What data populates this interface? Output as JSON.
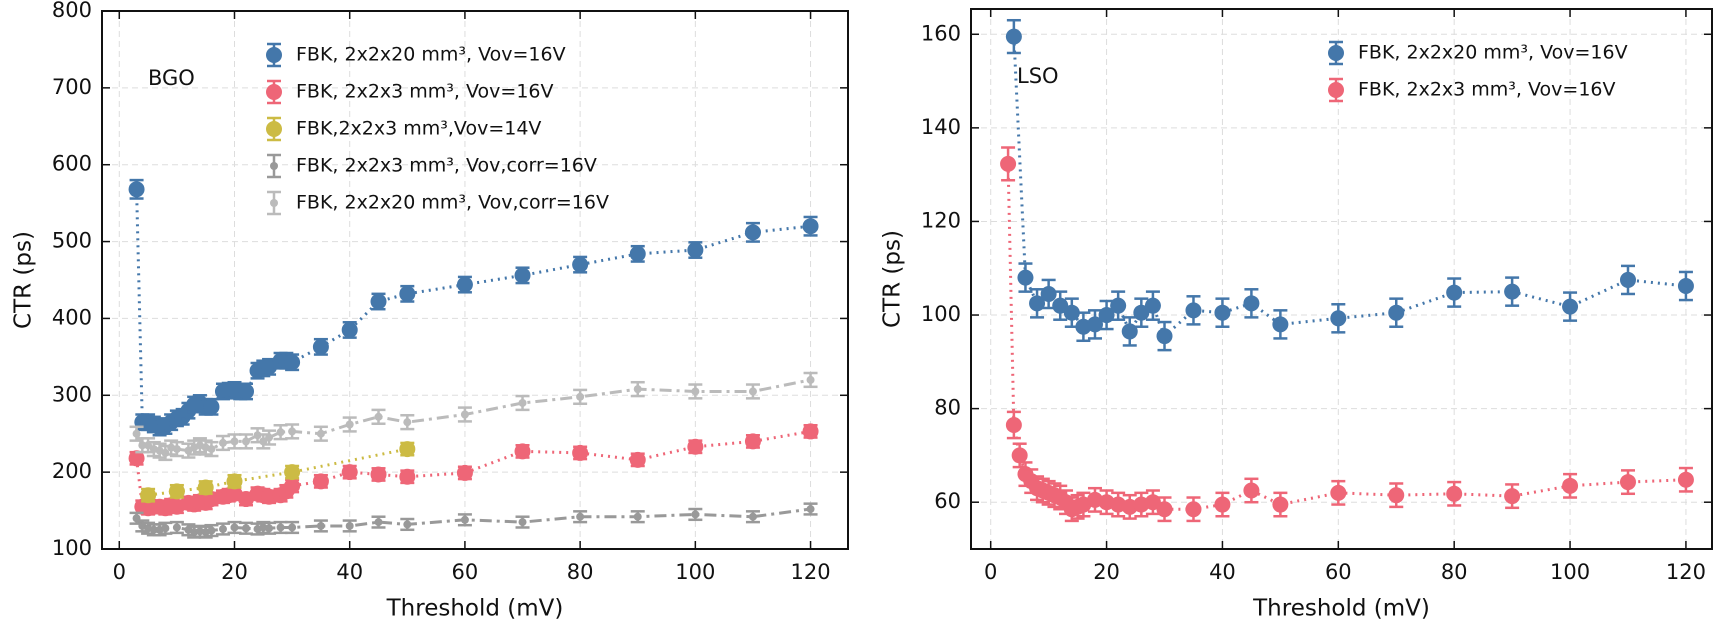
{
  "chart_data": [
    {
      "type": "line",
      "annotation": "BGO",
      "xlabel": "Threshold (mV)",
      "ylabel": "CTR (ps)",
      "xlim": [
        -3,
        126.5
      ],
      "ylim": [
        100,
        800
      ],
      "xticks": [
        0,
        20,
        40,
        60,
        80,
        100,
        120
      ],
      "yticks": [
        100,
        200,
        300,
        400,
        500,
        600,
        700,
        800
      ],
      "grid": true,
      "legend": "upper left",
      "series": [
        {
          "name": "FBK, 2x2x20 mm³, Vov=16V",
          "color": "#4477aa",
          "linestyle": "dotted",
          "marker_size": 8,
          "x": [
            3,
            4,
            5,
            6,
            7,
            8,
            9,
            10,
            11,
            12,
            13,
            14,
            15,
            16,
            18,
            19,
            20,
            21,
            22,
            24,
            25,
            26,
            28,
            29,
            30,
            35,
            40,
            45,
            50,
            60,
            70,
            80,
            90,
            100,
            110,
            120
          ],
          "values": [
            568,
            265,
            265,
            262,
            258,
            260,
            265,
            270,
            272,
            280,
            288,
            290,
            285,
            285,
            305,
            306,
            307,
            305,
            305,
            332,
            335,
            337,
            345,
            345,
            343,
            363,
            385,
            422,
            432,
            444,
            456,
            470,
            484,
            489,
            512,
            520
          ],
          "errors": [
            12,
            10,
            10,
            10,
            10,
            10,
            10,
            10,
            10,
            10,
            10,
            10,
            10,
            10,
            10,
            10,
            10,
            10,
            10,
            10,
            10,
            10,
            10,
            10,
            10,
            10,
            10,
            10,
            10,
            10,
            10,
            10,
            10,
            10,
            12,
            12
          ]
        },
        {
          "name": "FBK, 2x2x3 mm³, Vov=16V",
          "color": "#ee6677",
          "linestyle": "dotted",
          "marker_size": 8,
          "x": [
            3,
            4,
            5,
            6,
            7,
            8,
            9,
            10,
            12,
            13,
            14,
            15,
            16,
            18,
            19,
            20,
            22,
            24,
            25,
            26,
            28,
            29,
            30,
            35,
            40,
            45,
            50,
            60,
            70,
            80,
            90,
            100,
            110,
            120
          ],
          "values": [
            218,
            155,
            153,
            155,
            155,
            153,
            157,
            155,
            160,
            158,
            162,
            160,
            165,
            168,
            170,
            172,
            165,
            172,
            170,
            168,
            170,
            175,
            182,
            188,
            200,
            197,
            194,
            199,
            227,
            225,
            216,
            233,
            240,
            253
          ],
          "errors": [
            8,
            8,
            8,
            8,
            8,
            8,
            8,
            8,
            8,
            8,
            8,
            8,
            8,
            8,
            8,
            8,
            8,
            8,
            8,
            8,
            8,
            8,
            8,
            8,
            8,
            8,
            8,
            8,
            8,
            8,
            8,
            8,
            8,
            8
          ]
        },
        {
          "name": "FBK,2x2x3 mm³,Vov=14V",
          "color": "#ccbb44",
          "linestyle": "dotted",
          "marker_size": 8,
          "x": [
            5,
            10,
            15,
            20,
            30,
            50
          ],
          "values": [
            170,
            175,
            180,
            188,
            200,
            230
          ],
          "errors": [
            8,
            8,
            8,
            8,
            8,
            8
          ]
        },
        {
          "name": "FBK, 2x2x3 mm³, Vov,corr=16V",
          "color": "#999999",
          "linestyle": "dashdot",
          "marker_size": 4,
          "x": [
            3,
            4,
            5,
            6,
            7,
            8,
            10,
            12,
            13,
            14,
            15,
            16,
            18,
            20,
            22,
            24,
            25,
            26,
            28,
            30,
            35,
            40,
            45,
            50,
            60,
            70,
            80,
            90,
            100,
            110,
            120
          ],
          "values": [
            140,
            130,
            127,
            125,
            125,
            127,
            128,
            125,
            122,
            123,
            122,
            124,
            126,
            128,
            127,
            126,
            128,
            127,
            128,
            128,
            130,
            130,
            135,
            132,
            138,
            135,
            142,
            142,
            145,
            142,
            152
          ],
          "errors": [
            7,
            7,
            7,
            7,
            7,
            7,
            7,
            7,
            7,
            7,
            7,
            7,
            7,
            7,
            7,
            7,
            7,
            7,
            7,
            7,
            7,
            7,
            7,
            7,
            7,
            7,
            7,
            7,
            7,
            7,
            7
          ]
        },
        {
          "name": "FBK, 2x2x20 mm³, Vov,corr=16V",
          "color": "#bbbbbb",
          "linestyle": "dashdot",
          "marker_size": 4,
          "x": [
            3,
            4,
            5,
            6,
            7,
            8,
            9,
            10,
            12,
            13,
            14,
            15,
            16,
            18,
            20,
            22,
            24,
            25,
            26,
            28,
            30,
            35,
            40,
            45,
            50,
            60,
            70,
            80,
            90,
            100,
            110,
            120
          ],
          "values": [
            250,
            235,
            235,
            230,
            228,
            225,
            232,
            230,
            228,
            232,
            235,
            232,
            230,
            238,
            240,
            240,
            248,
            240,
            245,
            252,
            253,
            250,
            262,
            272,
            265,
            275,
            290,
            298,
            308,
            305,
            305,
            320
          ],
          "errors": [
            9,
            9,
            9,
            9,
            9,
            9,
            9,
            9,
            9,
            9,
            9,
            9,
            9,
            9,
            9,
            9,
            9,
            9,
            9,
            9,
            9,
            9,
            9,
            9,
            9,
            9,
            9,
            9,
            9,
            9,
            9,
            9
          ]
        }
      ]
    },
    {
      "type": "line",
      "annotation": "LSO",
      "xlabel": "Threshold (mV)",
      "ylabel": "CTR (ps)",
      "xlim": [
        -3.4,
        124.5
      ],
      "ylim": [
        50,
        165.4
      ],
      "xticks": [
        0,
        20,
        40,
        60,
        80,
        100,
        120
      ],
      "yticks": [
        60,
        80,
        100,
        120,
        140,
        160
      ],
      "grid": true,
      "legend": "upper right",
      "series": [
        {
          "name": "FBK, 2x2x20 mm³, Vov=16V",
          "color": "#4477aa",
          "linestyle": "dotted",
          "marker_size": 8,
          "x": [
            4,
            6,
            8,
            10,
            12,
            14,
            16,
            18,
            20,
            22,
            24,
            26,
            28,
            30,
            35,
            40,
            45,
            50,
            60,
            70,
            80,
            90,
            100,
            110,
            120
          ],
          "values": [
            159.5,
            108,
            102.5,
            104.5,
            102,
            100.5,
            97.5,
            98,
            100,
            102,
            96.5,
            100.5,
            102,
            95.5,
            101,
            100.5,
            102.5,
            98,
            99.3,
            100.5,
            104.8,
            105,
            101.8,
            107.5,
            106.2
          ],
          "errors": [
            3.5,
            3,
            3,
            3,
            3,
            3,
            3,
            3,
            3,
            3,
            3,
            3,
            3,
            3,
            3,
            3,
            3,
            3,
            3,
            3,
            3,
            3,
            3,
            3,
            3
          ]
        },
        {
          "name": "FBK, 2x2x3 mm³, Vov=16V",
          "color": "#ee6677",
          "linestyle": "dotted",
          "marker_size": 8,
          "x": [
            3,
            4,
            5,
            6,
            7,
            8,
            9,
            10,
            11,
            12,
            13,
            14,
            15,
            16,
            18,
            20,
            22,
            24,
            26,
            28,
            30,
            35,
            40,
            45,
            50,
            60,
            70,
            80,
            90,
            100,
            110,
            120
          ],
          "values": [
            132.3,
            76.5,
            70,
            66,
            64.5,
            63,
            62.5,
            62,
            61.5,
            61,
            60,
            58.5,
            59,
            59.5,
            60.5,
            60,
            59.5,
            59,
            59.5,
            60,
            58.5,
            58.5,
            59.5,
            62.5,
            59.5,
            62,
            61.5,
            61.8,
            61.3,
            63.5,
            64.3,
            64.8
          ],
          "errors": [
            3.5,
            2.8,
            2.5,
            2.5,
            2.5,
            2.5,
            2.5,
            2.5,
            2.5,
            2.5,
            2.5,
            2.5,
            2.5,
            2.5,
            2.5,
            2.5,
            2.5,
            2.5,
            2.5,
            2.5,
            2.5,
            2.5,
            2.5,
            2.5,
            2.5,
            2.5,
            2.5,
            2.5,
            2.5,
            2.5,
            2.5,
            2.5
          ]
        }
      ]
    }
  ]
}
